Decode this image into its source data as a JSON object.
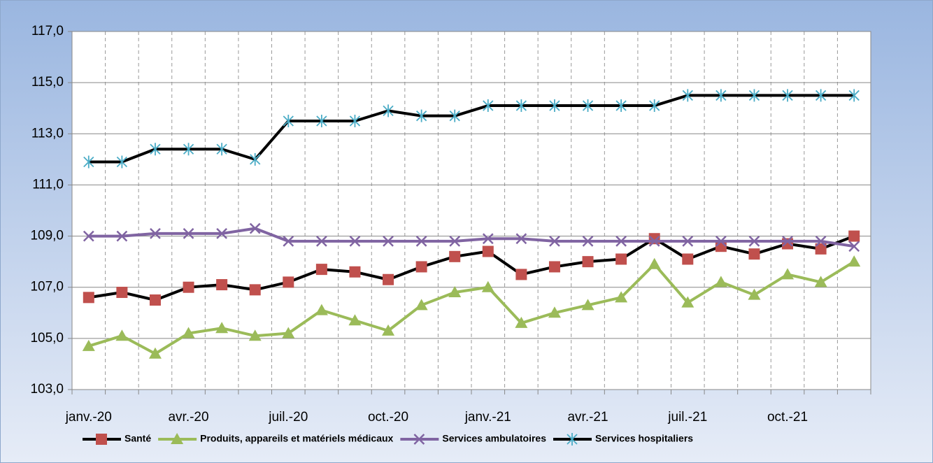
{
  "chart_data": {
    "type": "line",
    "categories": [
      "janv.-20",
      null,
      null,
      "avr.-20",
      null,
      null,
      "juil.-20",
      null,
      null,
      "oct.-20",
      null,
      null,
      "janv.-21",
      null,
      null,
      "avr.-21",
      null,
      null,
      "juil.-21",
      null,
      null,
      "oct.-21",
      null,
      null
    ],
    "series": [
      {
        "name": "Santé",
        "color": "#000000",
        "marker": "square",
        "marker_color": "#c0504d",
        "values": [
          106.6,
          106.8,
          106.5,
          107.0,
          107.1,
          106.9,
          107.2,
          107.7,
          107.6,
          107.3,
          107.8,
          108.2,
          108.4,
          107.5,
          107.8,
          108.0,
          108.1,
          108.9,
          108.1,
          108.6,
          108.3,
          108.7,
          108.5,
          109.0
        ]
      },
      {
        "name": "Produits, appareils et matériels médicaux",
        "color": "#9bbb59",
        "marker": "triangle",
        "marker_color": "#9bbb59",
        "values": [
          104.7,
          105.1,
          104.4,
          105.2,
          105.4,
          105.1,
          105.2,
          106.1,
          105.7,
          105.3,
          106.3,
          106.8,
          107.0,
          105.6,
          106.0,
          106.3,
          106.6,
          107.9,
          106.4,
          107.2,
          106.7,
          107.5,
          107.2,
          108.0
        ]
      },
      {
        "name": "Services ambulatoires",
        "color": "#8064a2",
        "marker": "x",
        "marker_color": "#8064a2",
        "values": [
          109.0,
          109.0,
          109.1,
          109.1,
          109.1,
          109.3,
          108.8,
          108.8,
          108.8,
          108.8,
          108.8,
          108.8,
          108.9,
          108.9,
          108.8,
          108.8,
          108.8,
          108.8,
          108.8,
          108.8,
          108.8,
          108.8,
          108.8,
          108.6
        ]
      },
      {
        "name": "Services hospitaliers",
        "color": "#000000",
        "marker": "star",
        "marker_color": "#4bacc6",
        "values": [
          111.9,
          111.9,
          112.4,
          112.4,
          112.4,
          112.0,
          113.5,
          113.5,
          113.5,
          113.9,
          113.7,
          113.7,
          114.1,
          114.1,
          114.1,
          114.1,
          114.1,
          114.1,
          114.5,
          114.5,
          114.5,
          114.5,
          114.5,
          114.5
        ]
      }
    ],
    "ylim": [
      103,
      117
    ],
    "yticks": [
      {
        "value": 103,
        "label": "103,0"
      },
      {
        "value": 105,
        "label": "105,0"
      },
      {
        "value": 107,
        "label": "107,0"
      },
      {
        "value": 109,
        "label": "109,0"
      },
      {
        "value": 111,
        "label": "111,0"
      },
      {
        "value": 113,
        "label": "113,0"
      },
      {
        "value": 115,
        "label": "115,0"
      },
      {
        "value": 117,
        "label": "117,0"
      }
    ],
    "grid": true,
    "legend": "bottom"
  }
}
